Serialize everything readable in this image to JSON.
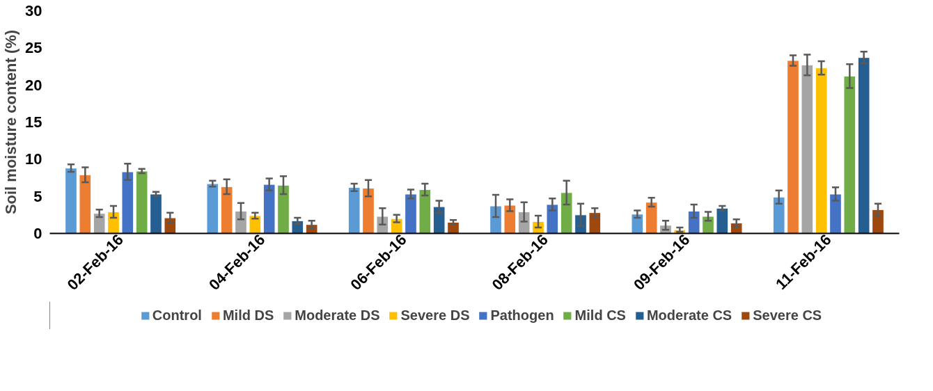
{
  "chart_data": {
    "type": "bar",
    "ylabel": "Soil moisture content (%)",
    "categories": [
      "02-Feb-16",
      "04-Feb-16",
      "06-Feb-16",
      "08-Feb-16",
      "09-Feb-16",
      "11-Feb-16"
    ],
    "ylim": [
      0,
      30
    ],
    "yticks": [
      0,
      5,
      10,
      15,
      20,
      25,
      30
    ],
    "grid": false,
    "legend": "bottom",
    "series": [
      {
        "name": "Control",
        "color": "#5b9bd5",
        "values": [
          8.8,
          6.7,
          6.2,
          3.7,
          2.6,
          4.9
        ],
        "errors": [
          0.5,
          0.4,
          0.5,
          1.5,
          0.5,
          0.9
        ]
      },
      {
        "name": "Mild DS",
        "color": "#ed7d31",
        "values": [
          7.9,
          6.3,
          6.1,
          3.8,
          4.2,
          23.3
        ],
        "errors": [
          1.0,
          1.0,
          1.1,
          0.8,
          0.6,
          0.7
        ]
      },
      {
        "name": "Moderate DS",
        "color": "#a5a5a5",
        "values": [
          2.7,
          3.0,
          2.3,
          2.9,
          1.1,
          22.7
        ],
        "errors": [
          0.5,
          1.1,
          1.1,
          1.3,
          0.6,
          1.4
        ]
      },
      {
        "name": "Severe DS",
        "color": "#ffc000",
        "values": [
          2.9,
          2.4,
          2.0,
          1.6,
          0.5,
          22.3
        ],
        "errors": [
          0.8,
          0.4,
          0.5,
          0.8,
          0.3,
          0.9
        ]
      },
      {
        "name": "Pathogen",
        "color": "#4472c4",
        "values": [
          8.3,
          6.6,
          5.3,
          3.9,
          3.0,
          5.3
        ],
        "errors": [
          1.1,
          0.8,
          0.6,
          0.8,
          0.9,
          0.9
        ]
      },
      {
        "name": "Mild CS",
        "color": "#70ad47",
        "values": [
          8.4,
          6.5,
          5.9,
          5.5,
          2.3,
          21.2
        ],
        "errors": [
          0.3,
          1.2,
          0.8,
          1.6,
          0.6,
          1.6
        ]
      },
      {
        "name": "Moderate CS",
        "color": "#255e91",
        "values": [
          5.3,
          1.7,
          3.6,
          2.5,
          3.4,
          23.7
        ],
        "errors": [
          0.3,
          0.4,
          0.8,
          1.5,
          0.3,
          0.8
        ]
      },
      {
        "name": "Severe CS",
        "color": "#9e480e",
        "values": [
          2.1,
          1.2,
          1.5,
          2.8,
          1.4,
          3.2
        ],
        "errors": [
          0.7,
          0.5,
          0.3,
          0.6,
          0.5,
          0.8
        ]
      }
    ]
  }
}
